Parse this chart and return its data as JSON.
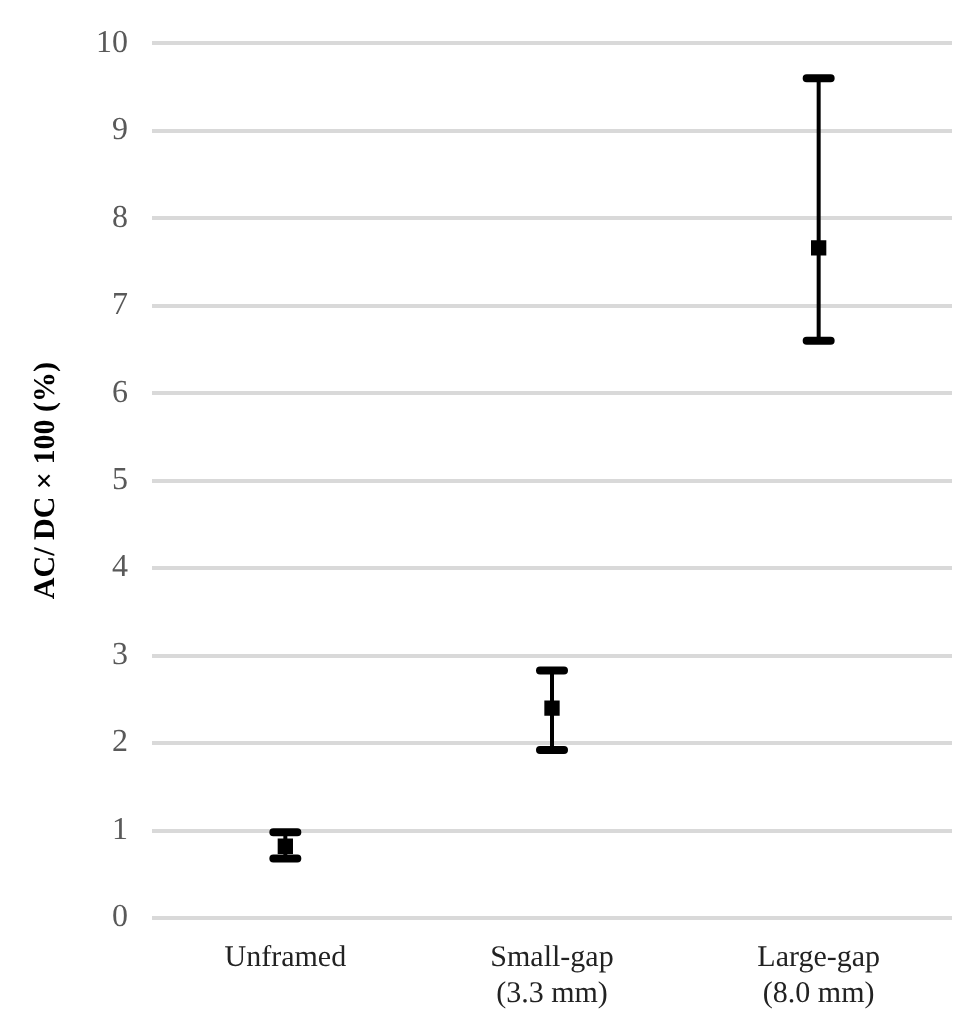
{
  "chart_data": {
    "type": "scatter",
    "ylabel": "AC/ DC × 100 (%)",
    "categories": [
      "Unframed",
      "Small-gap\n(3.3 mm)",
      "Large-gap\n(8.0 mm)"
    ],
    "series": [
      {
        "color": "#000000",
        "values": [
          0.82,
          2.4,
          7.66
        ],
        "errors": [
          [
            0.68,
            0.98
          ],
          [
            1.92,
            2.83
          ],
          [
            6.6,
            9.6
          ]
        ]
      }
    ],
    "ylim": [
      0,
      10
    ],
    "yticks": [
      0,
      1,
      2,
      3,
      4,
      5,
      6,
      7,
      8,
      9,
      10
    ],
    "grid": "y",
    "marker": "square",
    "legend": false
  }
}
